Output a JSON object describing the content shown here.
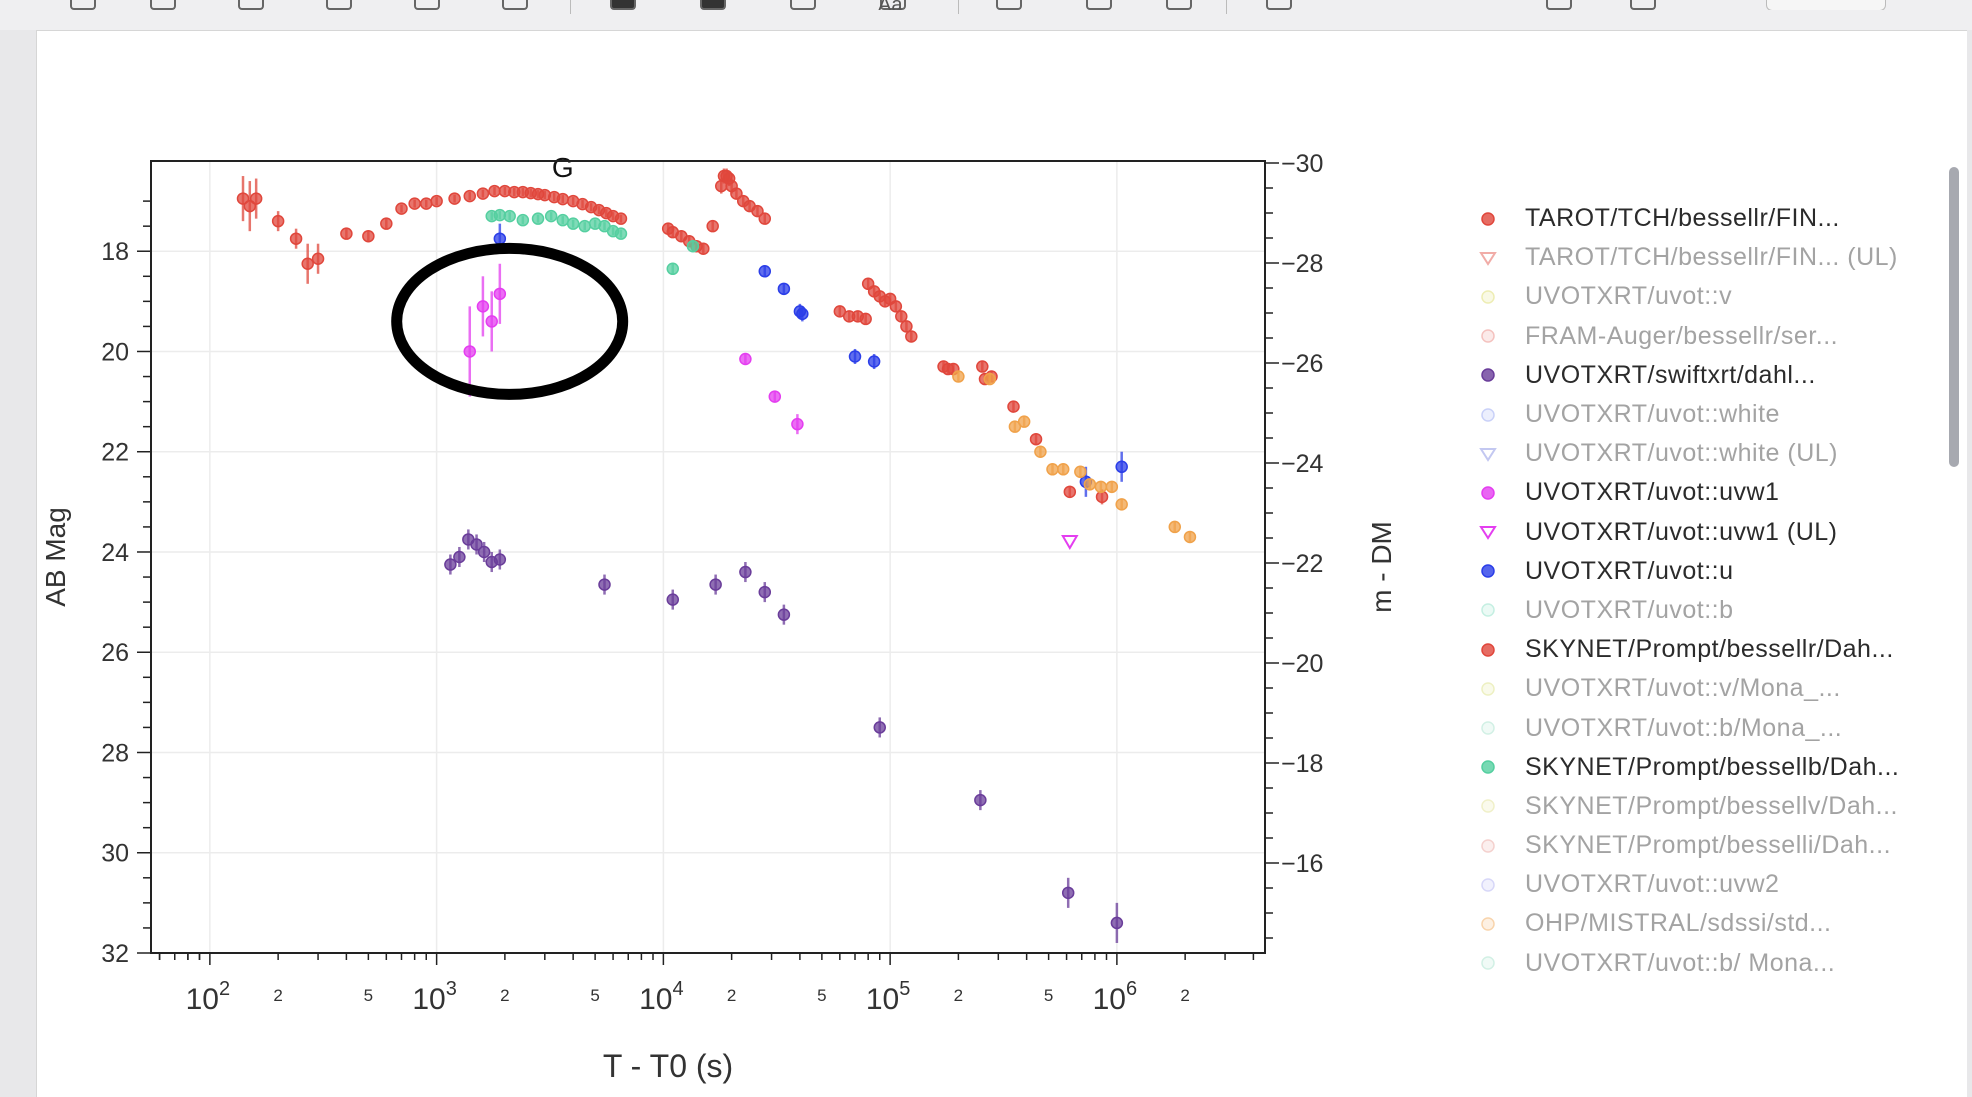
{
  "toolbar": {
    "icons": [
      "highlight-icon",
      "highlight-alt-icon",
      "rect-select-icon",
      "screen-icon",
      "underline-icon",
      "signature-icon",
      "fill-color-icon",
      "stroke-color-icon",
      "image-icon",
      "text-icon",
      "crop-icon",
      "adjust-icon",
      "comment-icon",
      "share-icon",
      "info-icon",
      "folder-icon"
    ],
    "text_item": "Aa"
  },
  "chart_data": {
    "type": "scatter",
    "annotation": "G",
    "xlabel": "T - T0 (s)",
    "ylabel": "AB Mag",
    "y2label": "m - DM",
    "x_scale": "log",
    "xlim": [
      55,
      4500000
    ],
    "ylim": [
      32,
      16.2
    ],
    "y_reversed": true,
    "y2lim": [
      -14.2,
      -30.04
    ],
    "grid": true,
    "legend_position": "right",
    "x_ticks": {
      "major": [
        {
          "value": 100,
          "base": "10",
          "exp": "2"
        },
        {
          "value": 1000,
          "base": "10",
          "exp": "3"
        },
        {
          "value": 10000,
          "base": "10",
          "exp": "4"
        },
        {
          "value": 100000,
          "base": "10",
          "exp": "5"
        },
        {
          "value": 1000000,
          "base": "10",
          "exp": "6"
        }
      ],
      "minor_labeled": [
        {
          "value": 200,
          "label": "2"
        },
        {
          "value": 500,
          "label": "5"
        },
        {
          "value": 2000,
          "label": "2"
        },
        {
          "value": 5000,
          "label": "5"
        },
        {
          "value": 20000,
          "label": "2"
        },
        {
          "value": 50000,
          "label": "5"
        },
        {
          "value": 200000,
          "label": "2"
        },
        {
          "value": 500000,
          "label": "5"
        },
        {
          "value": 2000000,
          "label": "2"
        }
      ]
    },
    "y_ticks": [
      "18",
      "20",
      "22",
      "24",
      "26",
      "28",
      "30",
      "32"
    ],
    "y2_ticks": [
      "−30",
      "−28",
      "−26",
      "−24",
      "−22",
      "−20",
      "−18",
      "−16"
    ],
    "circled_region": {
      "x_center": 2100,
      "y_center": 19.4,
      "note": "hand-drawn black ellipse around uvw1 points"
    },
    "series": [
      {
        "name": "TAROT/TCH/bessellr/FIN...",
        "color": "#e0473c",
        "marker": "circle",
        "muted": false,
        "points": [
          [
            140,
            16.95,
            0.45
          ],
          [
            150,
            17.1,
            0.5
          ],
          [
            160,
            16.95,
            0.4
          ],
          [
            200,
            17.4,
            0.2
          ],
          [
            240,
            17.75,
            0.2
          ],
          [
            270,
            18.25,
            0.4
          ],
          [
            300,
            18.15,
            0.3
          ],
          [
            400,
            17.65,
            0.1
          ],
          [
            500,
            17.7,
            0.1
          ],
          [
            600,
            17.45,
            0.1
          ],
          [
            700,
            17.15,
            0.08
          ],
          [
            800,
            17.05,
            0.08
          ],
          [
            900,
            17.05,
            0.08
          ],
          [
            1000,
            17.0,
            0.08
          ],
          [
            1200,
            16.95,
            0.08
          ],
          [
            1400,
            16.9,
            0.08
          ],
          [
            1600,
            16.85,
            0.08
          ],
          [
            1800,
            16.8,
            0.08
          ],
          [
            2000,
            16.8,
            0.08
          ],
          [
            2200,
            16.82,
            0.08
          ],
          [
            2400,
            16.82,
            0.08
          ],
          [
            2600,
            16.84,
            0.08
          ],
          [
            2800,
            16.86,
            0.08
          ],
          [
            3000,
            16.88,
            0.08
          ],
          [
            3300,
            16.92,
            0.08
          ],
          [
            3600,
            16.96,
            0.08
          ],
          [
            4000,
            17.0,
            0.08
          ],
          [
            4400,
            17.06,
            0.08
          ],
          [
            4800,
            17.12,
            0.08
          ],
          [
            5200,
            17.18,
            0.08
          ],
          [
            5600,
            17.24,
            0.08
          ],
          [
            6000,
            17.3,
            0.08
          ],
          [
            6500,
            17.35,
            0.08
          ],
          [
            10500,
            17.55,
            0.1
          ],
          [
            11000,
            17.62,
            0.1
          ],
          [
            12000,
            17.7,
            0.1
          ],
          [
            13000,
            17.8,
            0.1
          ],
          [
            14000,
            17.9,
            0.1
          ],
          [
            15000,
            17.95,
            0.1
          ],
          [
            16500,
            17.5,
            0.1
          ],
          [
            18000,
            16.7,
            0.15
          ],
          [
            18500,
            16.5,
            0.15
          ],
          [
            19000,
            16.5,
            0.15
          ],
          [
            19500,
            16.55,
            0.15
          ],
          [
            20000,
            16.7,
            0.15
          ],
          [
            21000,
            16.85,
            0.1
          ],
          [
            22500,
            17.0,
            0.1
          ],
          [
            24000,
            17.1,
            0.1
          ],
          [
            26000,
            17.2,
            0.1
          ],
          [
            28000,
            17.35,
            0.1
          ],
          [
            60000,
            19.2,
            0.1
          ],
          [
            66000,
            19.3,
            0.1
          ],
          [
            72000,
            19.3,
            0.1
          ],
          [
            78000,
            19.35,
            0.1
          ],
          [
            80000,
            18.65,
            0.1
          ],
          [
            85000,
            18.8,
            0.1
          ],
          [
            90000,
            18.9,
            0.1
          ],
          [
            95000,
            19.0,
            0.1
          ],
          [
            100000,
            18.95,
            0.1
          ],
          [
            106000,
            19.1,
            0.1
          ],
          [
            112000,
            19.3,
            0.1
          ],
          [
            118000,
            19.5,
            0.1
          ],
          [
            124000,
            19.7,
            0.1
          ],
          [
            172000,
            20.3,
            0.1
          ],
          [
            180000,
            20.35,
            0.1
          ],
          [
            190000,
            20.35,
            0.1
          ],
          [
            255000,
            20.3,
            0.1
          ],
          [
            262000,
            20.55,
            0.1
          ],
          [
            280000,
            20.5,
            0.1
          ],
          [
            350000,
            21.1,
            0.1
          ],
          [
            440000,
            21.75,
            0.1
          ],
          [
            620000,
            22.8,
            0.12
          ],
          [
            860000,
            22.9,
            0.15
          ]
        ]
      },
      {
        "name": "TAROT/TCH/bessellr/FIN... (UL)",
        "color": "#e0473c",
        "marker": "triangle-down",
        "muted": true,
        "points": []
      },
      {
        "name": "UVOTXRT/uvot::v",
        "color": "#d9d85a",
        "marker": "circle",
        "muted": true,
        "points": []
      },
      {
        "name": "FRAM-Auger/bessellr/ser...",
        "color": "#e87a72",
        "marker": "circle",
        "muted": true,
        "points": []
      },
      {
        "name": "UVOTXRT/swiftxrt/dahl...",
        "color": "#6a3d9a",
        "marker": "circle",
        "muted": false,
        "points": [
          [
            1150,
            24.25,
            0.2
          ],
          [
            1260,
            24.1,
            0.2
          ],
          [
            1380,
            23.75,
            0.2
          ],
          [
            1500,
            23.85,
            0.2
          ],
          [
            1620,
            24.0,
            0.2
          ],
          [
            1750,
            24.2,
            0.2
          ],
          [
            1900,
            24.15,
            0.2
          ],
          [
            5500,
            24.65,
            0.2
          ],
          [
            11000,
            24.95,
            0.2
          ],
          [
            17000,
            24.65,
            0.2
          ],
          [
            23000,
            24.4,
            0.2
          ],
          [
            28000,
            24.8,
            0.2
          ],
          [
            34000,
            25.25,
            0.2
          ],
          [
            90000,
            27.5,
            0.2
          ],
          [
            250000,
            28.95,
            0.2
          ],
          [
            610000,
            30.8,
            0.3
          ],
          [
            1000000,
            31.4,
            0.4
          ]
        ]
      },
      {
        "name": "UVOTXRT/uvot::white",
        "color": "#8a9af0",
        "marker": "circle",
        "muted": true,
        "points": []
      },
      {
        "name": "UVOTXRT/uvot::white (UL)",
        "color": "#7b86e0",
        "marker": "triangle-down",
        "muted": true,
        "points": []
      },
      {
        "name": "UVOTXRT/uvot::uvw1",
        "color": "#e43ef0",
        "marker": "circle",
        "muted": false,
        "points": [
          [
            1400,
            20.0,
            0.9
          ],
          [
            1600,
            19.1,
            0.6
          ],
          [
            1750,
            19.4,
            0.6
          ],
          [
            1900,
            18.85,
            0.6
          ],
          [
            23000,
            20.15,
            0.1
          ],
          [
            31000,
            20.9,
            0.1
          ],
          [
            39000,
            21.45,
            0.2
          ]
        ]
      },
      {
        "name": "UVOTXRT/uvot::uvw1 (UL)",
        "color": "#e43ef0",
        "marker": "triangle-down",
        "muted": false,
        "points": [
          [
            620000,
            23.8,
            0
          ]
        ]
      },
      {
        "name": "UVOTXRT/uvot::u",
        "color": "#2b3ee8",
        "marker": "circle",
        "muted": false,
        "points": [
          [
            1900,
            17.75,
            0.3
          ],
          [
            28000,
            18.4,
            0.1
          ],
          [
            34000,
            18.75,
            0.1
          ],
          [
            40000,
            19.2,
            0.15
          ],
          [
            41000,
            19.25,
            0.15
          ],
          [
            70000,
            20.1,
            0.15
          ],
          [
            85000,
            20.2,
            0.15
          ],
          [
            730000,
            22.6,
            0.3
          ],
          [
            1050000,
            22.3,
            0.3
          ]
        ]
      },
      {
        "name": "UVOTXRT/uvot::b",
        "color": "#7fdcbf",
        "marker": "circle",
        "muted": true,
        "points": []
      },
      {
        "name": "SKYNET/Prompt/bessellr/Dah...",
        "color": "#e0473c",
        "marker": "circle",
        "muted": false,
        "points": []
      },
      {
        "name": "UVOTXRT/uvot::v/Mona_...",
        "color": "#d9e07a",
        "marker": "circle",
        "muted": true,
        "points": []
      },
      {
        "name": "UVOTXRT/uvot::b/Mona_...",
        "color": "#9de0c6",
        "marker": "circle",
        "muted": true,
        "points": []
      },
      {
        "name": "SKYNET/Prompt/bessellb/Dah...",
        "color": "#55cfa0",
        "marker": "circle",
        "muted": false,
        "points": [
          [
            1750,
            17.3,
            0.08
          ],
          [
            1900,
            17.28,
            0.08
          ],
          [
            2100,
            17.3,
            0.08
          ],
          [
            2400,
            17.38,
            0.08
          ],
          [
            2800,
            17.35,
            0.08
          ],
          [
            3200,
            17.3,
            0.08
          ],
          [
            3600,
            17.38,
            0.08
          ],
          [
            4000,
            17.45,
            0.08
          ],
          [
            4500,
            17.5,
            0.08
          ],
          [
            5000,
            17.45,
            0.08
          ],
          [
            5500,
            17.5,
            0.08
          ],
          [
            6000,
            17.6,
            0.08
          ],
          [
            6500,
            17.65,
            0.08
          ],
          [
            11000,
            18.35,
            0.1
          ],
          [
            13500,
            17.9,
            0.1
          ]
        ]
      },
      {
        "name": "SKYNET/Prompt/bessellv/Dah...",
        "color": "#dfe08a",
        "marker": "circle",
        "muted": true,
        "points": []
      },
      {
        "name": "SKYNET/Prompt/besselli/Dah...",
        "color": "#e89a94",
        "marker": "circle",
        "muted": true,
        "points": []
      },
      {
        "name": "UVOTXRT/uvot::uvw2",
        "color": "#a8a8f0",
        "marker": "circle",
        "muted": true,
        "points": []
      },
      {
        "name": "OHP/MISTRAL/sdssi/std...",
        "color": "#f0a24a",
        "marker": "circle",
        "muted": true,
        "points": [
          [
            200000,
            20.5,
            0.1
          ],
          [
            275000,
            20.55,
            0.1
          ],
          [
            355000,
            21.5,
            0.1
          ],
          [
            390000,
            21.4,
            0.1
          ],
          [
            460000,
            22.0,
            0.1
          ],
          [
            520000,
            22.35,
            0.1
          ],
          [
            580000,
            22.35,
            0.1
          ],
          [
            690000,
            22.4,
            0.1
          ],
          [
            760000,
            22.65,
            0.1
          ],
          [
            850000,
            22.7,
            0.1
          ],
          [
            950000,
            22.7,
            0.1
          ],
          [
            1050000,
            23.05,
            0.1
          ],
          [
            1800000,
            23.5,
            0.1
          ],
          [
            2100000,
            23.7,
            0.1
          ]
        ]
      },
      {
        "name": "UVOTXRT/uvot::b/ Mona...",
        "color": "#9de0c6",
        "marker": "circle",
        "muted": true,
        "points": []
      }
    ]
  }
}
